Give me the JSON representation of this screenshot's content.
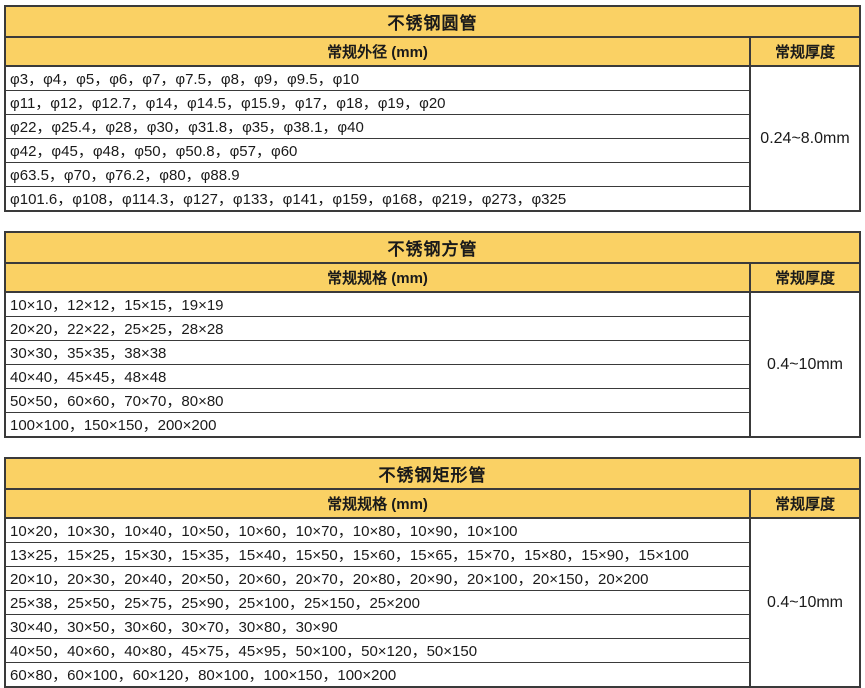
{
  "colors": {
    "header_fill": "#FAD164",
    "border": "#3A3A3A",
    "text": "#1A1A1A",
    "page_background": "#FFFFFF"
  },
  "tables": [
    {
      "title": "不锈钢圆管",
      "spec_header": "常规外径 (mm)",
      "thickness_header": "常规厚度",
      "thickness_range": "0.24~8.0mm",
      "rows": [
        "φ3，φ4，φ5，φ6，φ7，φ7.5，φ8，φ9，φ9.5，φ10",
        "φ11，φ12，φ12.7，φ14，φ14.5，φ15.9，φ17，φ18，φ19，φ20",
        "φ22，φ25.4，φ28，φ30，φ31.8，φ35，φ38.1，φ40",
        "φ42，φ45，φ48，φ50，φ50.8，φ57，φ60",
        "φ63.5，φ70，φ76.2，φ80，φ88.9",
        "φ101.6，φ108，φ114.3，φ127，φ133，φ141，φ159，φ168，φ219，φ273，φ325"
      ]
    },
    {
      "title": "不锈钢方管",
      "spec_header": "常规规格 (mm)",
      "thickness_header": "常规厚度",
      "thickness_range": "0.4~10mm",
      "rows": [
        "10×10，12×12，15×15，19×19",
        "20×20，22×22，25×25，28×28",
        "30×30，35×35，38×38",
        "40×40，45×45，48×48",
        "50×50，60×60，70×70，80×80",
        "100×100，150×150，200×200"
      ]
    },
    {
      "title": "不锈钢矩形管",
      "spec_header": "常规规格 (mm)",
      "thickness_header": "常规厚度",
      "thickness_range": "0.4~10mm",
      "rows": [
        "10×20，10×30，10×40，10×50，10×60，10×70，10×80，10×90，10×100",
        "13×25，15×25，15×30，15×35，15×40，15×50，15×60，15×65，15×70，15×80，15×90，15×100",
        "20×10，20×30，20×40，20×50，20×60，20×70，20×80，20×90，20×100，20×150，20×200",
        "25×38，25×50，25×75，25×90，25×100，25×150，25×200",
        "30×40，30×50，30×60，30×70，30×80，30×90",
        "40×50，40×60，40×80，45×75，45×95，50×100，50×120，50×150",
        "60×80，60×100，60×120，80×100，100×150，100×200"
      ]
    }
  ]
}
